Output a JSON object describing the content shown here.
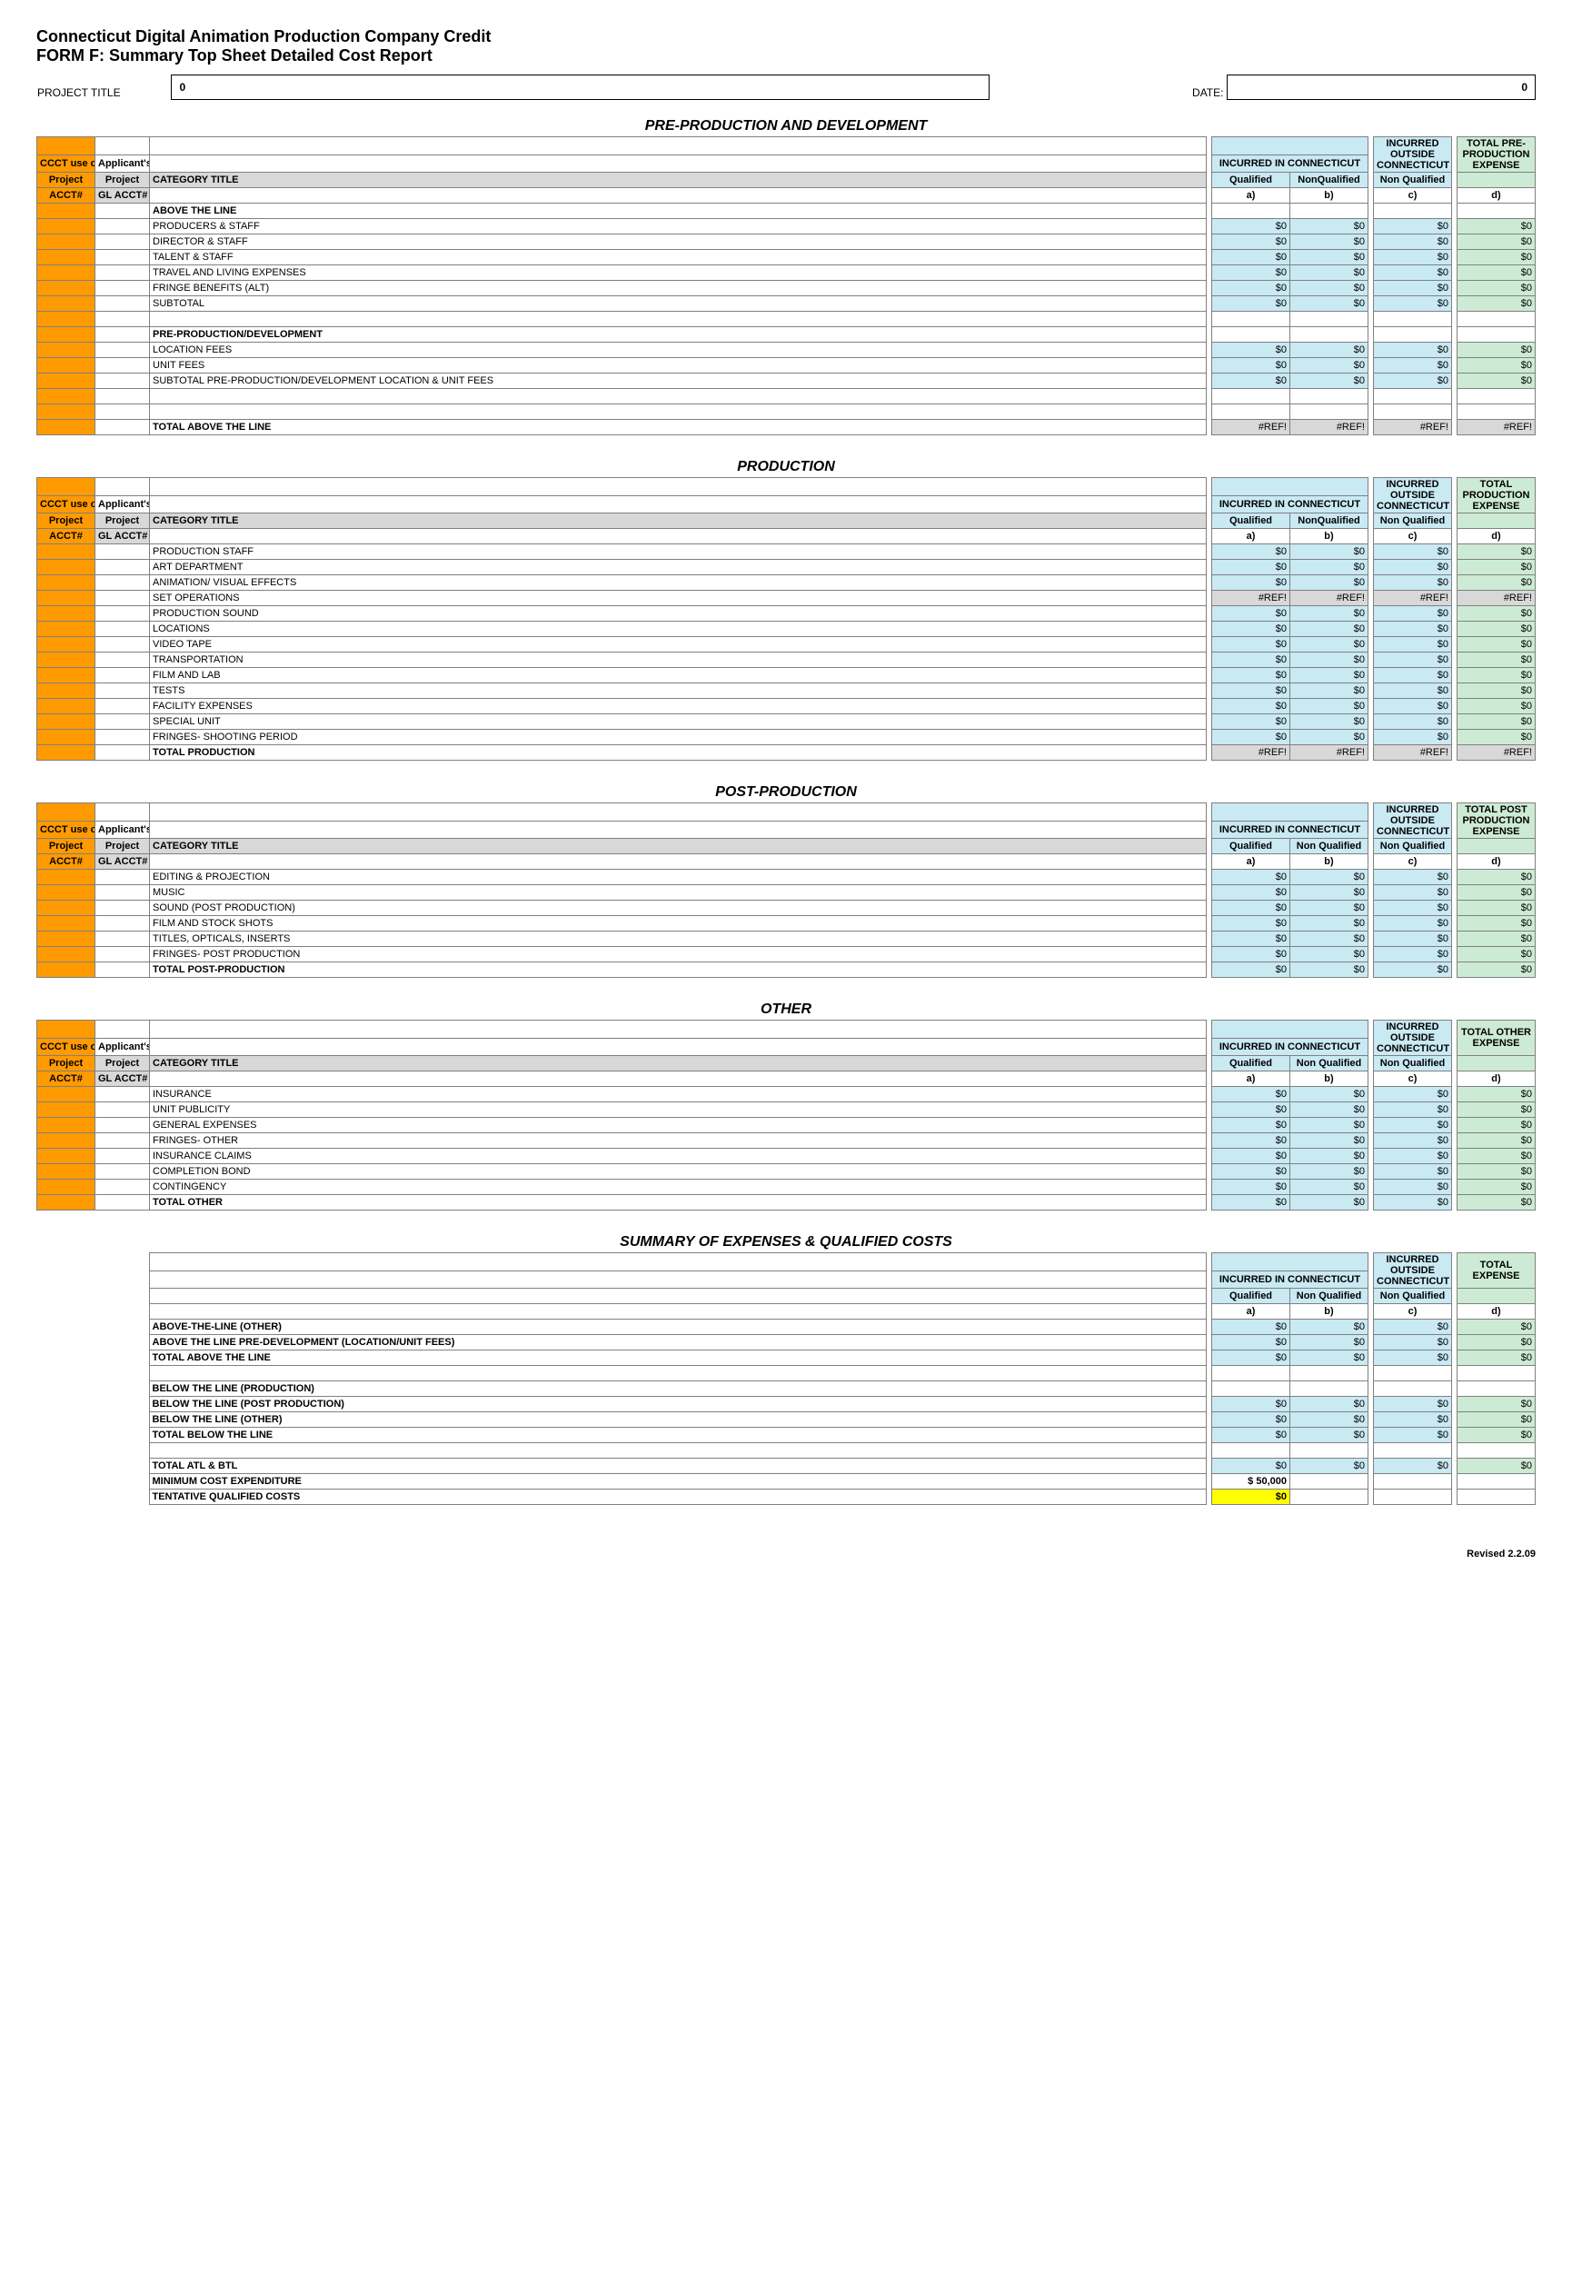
{
  "header": {
    "title": "Connecticut Digital Animation Production Company Credit",
    "subtitle": "FORM F:  Summary Top Sheet Detailed Cost Report",
    "project_title_label": "PROJECT TITLE",
    "project_title_value": "0",
    "date_label": "DATE:",
    "date_value": "0"
  },
  "col_headers": {
    "ccct": "CCCT use only",
    "applicants": "Applicant's",
    "project": "Project",
    "gl_acct": "GL ACCT#",
    "acct": "ACCT#",
    "category_title": "CATEGORY TITLE",
    "incurred_ct": "INCURRED IN CONNECTICUT",
    "qualified": "Qualified",
    "nonqualified": "NonQualified",
    "non_qualified_sp": "Non Qualified",
    "incurred_outside": "INCURRED OUTSIDE CONNECTICUT",
    "a": "a)",
    "b": "b)",
    "c": "c)",
    "d": "d)"
  },
  "sections": {
    "preprod": {
      "title": "PRE-PRODUCTION AND DEVELOPMENT",
      "total_col_label": "TOTAL PRE-PRODUCTION EXPENSE",
      "groups": [
        {
          "heading": "ABOVE THE LINE",
          "rows": [
            {
              "t": "PRODUCERS & STAFF",
              "a": "$0",
              "b": "$0",
              "c": "$0",
              "d": "$0"
            },
            {
              "t": "DIRECTOR & STAFF",
              "a": "$0",
              "b": "$0",
              "c": "$0",
              "d": "$0"
            },
            {
              "t": "TALENT & STAFF",
              "a": "$0",
              "b": "$0",
              "c": "$0",
              "d": "$0"
            },
            {
              "t": "TRAVEL AND LIVING EXPENSES",
              "a": "$0",
              "b": "$0",
              "c": "$0",
              "d": "$0"
            },
            {
              "t": "FRINGE BENEFITS (ALT)",
              "a": "$0",
              "b": "$0",
              "c": "$0",
              "d": "$0"
            },
            {
              "t": "SUBTOTAL",
              "a": "$0",
              "b": "$0",
              "c": "$0",
              "d": "$0"
            }
          ]
        },
        {
          "heading": "PRE-PRODUCTION/DEVELOPMENT",
          "rows": [
            {
              "t": "LOCATION FEES",
              "a": "$0",
              "b": "$0",
              "c": "$0",
              "d": "$0"
            },
            {
              "t": "UNIT FEES",
              "a": "$0",
              "b": "$0",
              "c": "$0",
              "d": "$0"
            },
            {
              "t": "SUBTOTAL PRE-PRODUCTION/DEVELOPMENT LOCATION & UNIT FEES",
              "a": "$0",
              "b": "$0",
              "c": "$0",
              "d": "$0"
            }
          ]
        }
      ],
      "total_row": {
        "t": "TOTAL ABOVE THE LINE",
        "a": "#REF!",
        "b": "#REF!",
        "c": "#REF!",
        "d": "#REF!",
        "shade": true
      }
    },
    "prod": {
      "title": "PRODUCTION",
      "total_col_label": "TOTAL PRODUCTION EXPENSE",
      "rows": [
        {
          "t": "PRODUCTION STAFF",
          "a": "$0",
          "b": "$0",
          "c": "$0",
          "d": "$0"
        },
        {
          "t": "ART DEPARTMENT",
          "a": "$0",
          "b": "$0",
          "c": "$0",
          "d": "$0"
        },
        {
          "t": "ANIMATION/ VISUAL EFFECTS",
          "a": "$0",
          "b": "$0",
          "c": "$0",
          "d": "$0"
        },
        {
          "t": "SET OPERATIONS",
          "a": "#REF!",
          "b": "#REF!",
          "c": "#REF!",
          "d": "#REF!",
          "shade": true
        },
        {
          "t": "PRODUCTION SOUND",
          "a": "$0",
          "b": "$0",
          "c": "$0",
          "d": "$0"
        },
        {
          "t": "LOCATIONS",
          "a": "$0",
          "b": "$0",
          "c": "$0",
          "d": "$0"
        },
        {
          "t": "VIDEO TAPE",
          "a": "$0",
          "b": "$0",
          "c": "$0",
          "d": "$0"
        },
        {
          "t": "TRANSPORTATION",
          "a": "$0",
          "b": "$0",
          "c": "$0",
          "d": "$0"
        },
        {
          "t": "FILM AND LAB",
          "a": "$0",
          "b": "$0",
          "c": "$0",
          "d": "$0"
        },
        {
          "t": "TESTS",
          "a": "$0",
          "b": "$0",
          "c": "$0",
          "d": "$0"
        },
        {
          "t": "FACILITY EXPENSES",
          "a": "$0",
          "b": "$0",
          "c": "$0",
          "d": "$0"
        },
        {
          "t": "SPECIAL UNIT",
          "a": "$0",
          "b": "$0",
          "c": "$0",
          "d": "$0"
        },
        {
          "t": "FRINGES- SHOOTING PERIOD",
          "a": "$0",
          "b": "$0",
          "c": "$0",
          "d": "$0"
        }
      ],
      "total_row": {
        "t": "TOTAL PRODUCTION",
        "a": "#REF!",
        "b": "#REF!",
        "c": "#REF!",
        "d": "#REF!",
        "shade": true
      }
    },
    "postprod": {
      "title": "POST-PRODUCTION",
      "total_col_label": "TOTAL POST PRODUCTION EXPENSE",
      "rows": [
        {
          "t": "EDITING & PROJECTION",
          "a": "$0",
          "b": "$0",
          "c": "$0",
          "d": "$0"
        },
        {
          "t": "MUSIC",
          "a": "$0",
          "b": "$0",
          "c": "$0",
          "d": "$0"
        },
        {
          "t": "SOUND (POST PRODUCTION)",
          "a": "$0",
          "b": "$0",
          "c": "$0",
          "d": "$0"
        },
        {
          "t": "FILM AND STOCK SHOTS",
          "a": "$0",
          "b": "$0",
          "c": "$0",
          "d": "$0"
        },
        {
          "t": "TITLES, OPTICALS, INSERTS",
          "a": "$0",
          "b": "$0",
          "c": "$0",
          "d": "$0"
        },
        {
          "t": "FRINGES- POST PRODUCTION",
          "a": "$0",
          "b": "$0",
          "c": "$0",
          "d": "$0"
        }
      ],
      "total_row": {
        "t": "TOTAL POST-PRODUCTION",
        "a": "$0",
        "b": "$0",
        "c": "$0",
        "d": "$0",
        "bold": true
      }
    },
    "other": {
      "title": "OTHER",
      "total_col_label": "TOTAL OTHER EXPENSE",
      "rows": [
        {
          "t": "INSURANCE",
          "a": "$0",
          "b": "$0",
          "c": "$0",
          "d": "$0"
        },
        {
          "t": "UNIT PUBLICITY",
          "a": "$0",
          "b": "$0",
          "c": "$0",
          "d": "$0"
        },
        {
          "t": "GENERAL EXPENSES",
          "a": "$0",
          "b": "$0",
          "c": "$0",
          "d": "$0"
        },
        {
          "t": "FRINGES- OTHER",
          "a": "$0",
          "b": "$0",
          "c": "$0",
          "d": "$0"
        },
        {
          "t": "INSURANCE CLAIMS",
          "a": "$0",
          "b": "$0",
          "c": "$0",
          "d": "$0"
        },
        {
          "t": "COMPLETION BOND",
          "a": "$0",
          "b": "$0",
          "c": "$0",
          "d": "$0"
        },
        {
          "t": "CONTINGENCY",
          "a": "$0",
          "b": "$0",
          "c": "$0",
          "d": "$0"
        }
      ],
      "total_row": {
        "t": "TOTAL OTHER",
        "a": "$0",
        "b": "$0",
        "c": "$0",
        "d": "$0",
        "bold": true
      }
    },
    "summary": {
      "title": "SUMMARY OF EXPENSES & QUALIFIED COSTS",
      "total_col_label": "TOTAL EXPENSE",
      "rows": [
        {
          "t": "ABOVE-THE-LINE (OTHER)",
          "a": "$0",
          "b": "$0",
          "c": "$0",
          "d": "$0",
          "bold": true
        },
        {
          "t": "ABOVE THE LINE PRE-DEVELOPMENT (LOCATION/UNIT FEES)",
          "a": "$0",
          "b": "$0",
          "c": "$0",
          "d": "$0",
          "bold": true
        },
        {
          "t": "TOTAL ABOVE THE LINE",
          "a": "$0",
          "b": "$0",
          "c": "$0",
          "d": "$0",
          "bold": true
        },
        {
          "gap": true
        },
        {
          "t": "BELOW THE LINE (PRODUCTION)",
          "bold": true,
          "blank": true
        },
        {
          "t": "BELOW THE LINE (POST PRODUCTION)",
          "a": "$0",
          "b": "$0",
          "c": "$0",
          "d": "$0",
          "bold": true
        },
        {
          "t": "BELOW THE LINE (OTHER)",
          "a": "$0",
          "b": "$0",
          "c": "$0",
          "d": "$0",
          "bold": true
        },
        {
          "t": "TOTAL BELOW THE LINE",
          "a": "$0",
          "b": "$0",
          "c": "$0",
          "d": "$0",
          "bold": true
        },
        {
          "gap": true
        },
        {
          "t": "TOTAL ATL & BTL",
          "a": "$0",
          "b": "$0",
          "c": "$0",
          "d": "$0",
          "bold": true
        },
        {
          "t": "MINIMUM COST EXPENDITURE",
          "a": "$          50,000",
          "bold": true,
          "only_a": true,
          "a_white": true
        },
        {
          "t": "TENTATIVE QUALIFIED COSTS",
          "a": "$0",
          "bold": true,
          "only_a": true,
          "a_yellow": true
        }
      ]
    }
  },
  "footer": "Revised 2.2.09",
  "colors": {
    "orange": "#ff9a00",
    "blue": "#c9e9f3",
    "green": "#cdebd4",
    "grey": "#d8d8d8",
    "yellow": "#ffff00"
  }
}
